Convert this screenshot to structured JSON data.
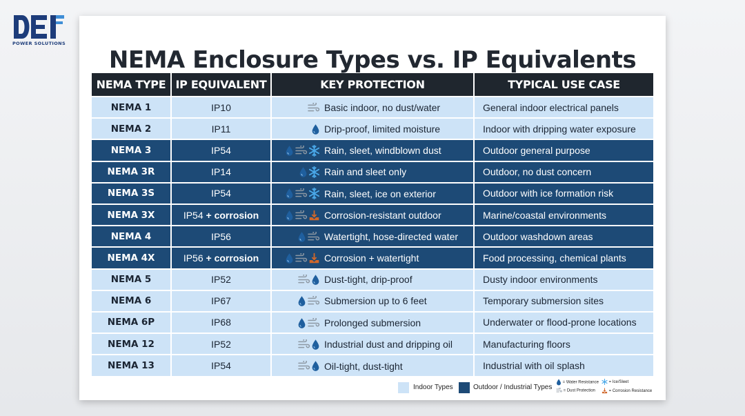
{
  "brand": {
    "name": "DEI",
    "tagline": "POWER SOLUTIONS"
  },
  "title": "NEMA Enclosure Types vs. IP Equivalents",
  "colors": {
    "indoor": "#cde3f7",
    "outdoor": "#1d4a76",
    "header": "#1f262e",
    "water": "#1f5f9e",
    "ice": "#4aa8e8",
    "corrosion": "#d0672a"
  },
  "headers": [
    "NEMA TYPE",
    "IP EQUIVALENT",
    "KEY PROTECTION",
    "TYPICAL USE CASE"
  ],
  "rows": [
    {
      "type": "NEMA 1",
      "ip": "IP10",
      "ip_extra": "",
      "icons": [
        "dust-icon"
      ],
      "protection": "Basic indoor, no dust/water",
      "use": "General indoor electrical panels",
      "category": "indoor"
    },
    {
      "type": "NEMA 2",
      "ip": "IP11",
      "ip_extra": "",
      "icons": [
        "water-drop-icon"
      ],
      "protection": "Drip-proof, limited moisture",
      "use": "Indoor with dripping water exposure",
      "category": "indoor"
    },
    {
      "type": "NEMA 3",
      "ip": "IP54",
      "ip_extra": "",
      "icons": [
        "water-drop-icon",
        "dust-icon",
        "snowflake-icon"
      ],
      "protection": "Rain, sleet, windblown dust",
      "use": "Outdoor general purpose",
      "category": "outdoor"
    },
    {
      "type": "NEMA 3R",
      "ip": "IP14",
      "ip_extra": "",
      "icons": [
        "water-drop-icon",
        "snowflake-icon"
      ],
      "protection": "Rain and sleet only",
      "use": "Outdoor, no dust concern",
      "category": "outdoor"
    },
    {
      "type": "NEMA 3S",
      "ip": "IP54",
      "ip_extra": "",
      "icons": [
        "water-drop-icon",
        "dust-icon",
        "snowflake-icon"
      ],
      "protection": "Rain, sleet, ice on exterior",
      "use": "Outdoor with ice formation risk",
      "category": "outdoor"
    },
    {
      "type": "NEMA 3X",
      "ip": "IP54",
      "ip_extra": "+ corrosion",
      "icons": [
        "water-drop-icon",
        "dust-icon",
        "corrosion-icon"
      ],
      "protection": "Corrosion-resistant outdoor",
      "use": "Marine/coastal environments",
      "category": "outdoor"
    },
    {
      "type": "NEMA 4",
      "ip": "IP56",
      "ip_extra": "",
      "icons": [
        "water-drop-icon",
        "dust-icon"
      ],
      "protection": "Watertight, hose-directed water",
      "use": "Outdoor washdown areas",
      "category": "outdoor"
    },
    {
      "type": "NEMA 4X",
      "ip": "IP56",
      "ip_extra": "+ corrosion",
      "icons": [
        "water-drop-icon",
        "dust-icon",
        "corrosion-icon"
      ],
      "protection": "Corrosion + watertight",
      "use": "Food processing, chemical plants",
      "category": "outdoor"
    },
    {
      "type": "NEMA 5",
      "ip": "IP52",
      "ip_extra": "",
      "icons": [
        "dust-icon",
        "water-drop-icon"
      ],
      "protection": "Dust-tight, drip-proof",
      "use": "Dusty indoor environments",
      "category": "indoor"
    },
    {
      "type": "NEMA 6",
      "ip": "IP67",
      "ip_extra": "",
      "icons": [
        "water-drop-icon",
        "dust-icon"
      ],
      "protection": "Submersion up to 6 feet",
      "use": "Temporary submersion sites",
      "category": "indoor"
    },
    {
      "type": "NEMA 6P",
      "ip": "IP68",
      "ip_extra": "",
      "icons": [
        "water-drop-icon",
        "dust-icon"
      ],
      "protection": "Prolonged submersion",
      "use": "Underwater or flood-prone locations",
      "category": "indoor"
    },
    {
      "type": "NEMA 12",
      "ip": "IP52",
      "ip_extra": "",
      "icons": [
        "dust-icon",
        "water-drop-icon"
      ],
      "protection": "Industrial dust and dripping oil",
      "use": "Manufacturing floors",
      "category": "indoor"
    },
    {
      "type": "NEMA 13",
      "ip": "IP54",
      "ip_extra": "",
      "icons": [
        "dust-icon",
        "water-drop-icon"
      ],
      "protection": "Oil-tight, dust-tight",
      "use": "Industrial with oil splash",
      "category": "indoor"
    }
  ],
  "legend": {
    "indoor": "Indoor Types",
    "outdoor": "Outdoor / Industrial Types",
    "water": "= Water Resistance",
    "ice": "= Ice/Sleet",
    "dust": "= Dust Protection",
    "corrosion": "= Corrosion Resistance"
  }
}
